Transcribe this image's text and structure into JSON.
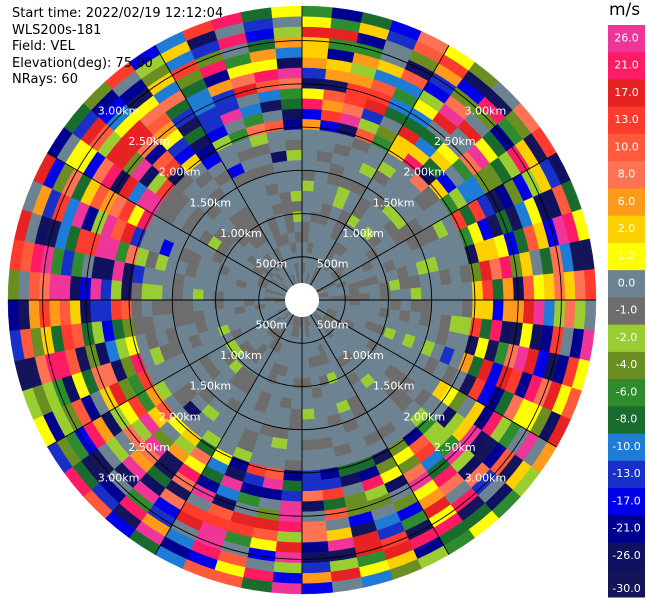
{
  "header": {
    "start_time": "Start time: 2022/02/19 12:12:04",
    "instrument": "WLS200s-181",
    "field": "Field: VEL",
    "elevation": "Elevation(deg): 75.00",
    "nrays": "NRays: 60"
  },
  "chart_data": {
    "type": "heatmap",
    "projection": "polar (PPI)",
    "field": "VEL",
    "elevation_deg": 75.0,
    "n_rays": 60,
    "range_rings_labels": [
      "500m",
      "1.00km",
      "1.50km",
      "2.00km",
      "2.50km",
      "3.00km"
    ],
    "range_rings_km": [
      0.5,
      1.0,
      1.5,
      2.0,
      2.5,
      3.0
    ],
    "max_range_km": 3.4,
    "colorbar": {
      "unit": "m/s",
      "tick_labels": [
        "26.0",
        "21.0",
        "17.0",
        "13.0",
        "10.0",
        "8.0",
        "6.0",
        "2.0",
        "1.0",
        "0.0",
        "-1.0",
        "-2.0",
        "-4.0",
        "-6.0",
        "-8.0",
        "-10.0",
        "-13.0",
        "-17.0",
        "-21.0",
        "-26.0",
        "-30.0"
      ],
      "bin_colors": [
        "#f0359a",
        "#ff1a66",
        "#e62222",
        "#ff3b2e",
        "#ff5a3c",
        "#ff7355",
        "#ff9a1a",
        "#ffd000",
        "#ffff00",
        "#6d8391",
        "#6d6d6d",
        "#9acd32",
        "#6b8e23",
        "#2e8b2e",
        "#1a6b2e",
        "#1e7bd6",
        "#1830c8",
        "#0000e8",
        "#000090",
        "#101060",
        "#14145a"
      ]
    },
    "near_field_state": "low velocities (approx. -2 to 1 m/s) inside ~1.9 km",
    "far_field_state": "aliased / noisy velocities (-30 to 26 m/s) beyond ~2 km"
  }
}
